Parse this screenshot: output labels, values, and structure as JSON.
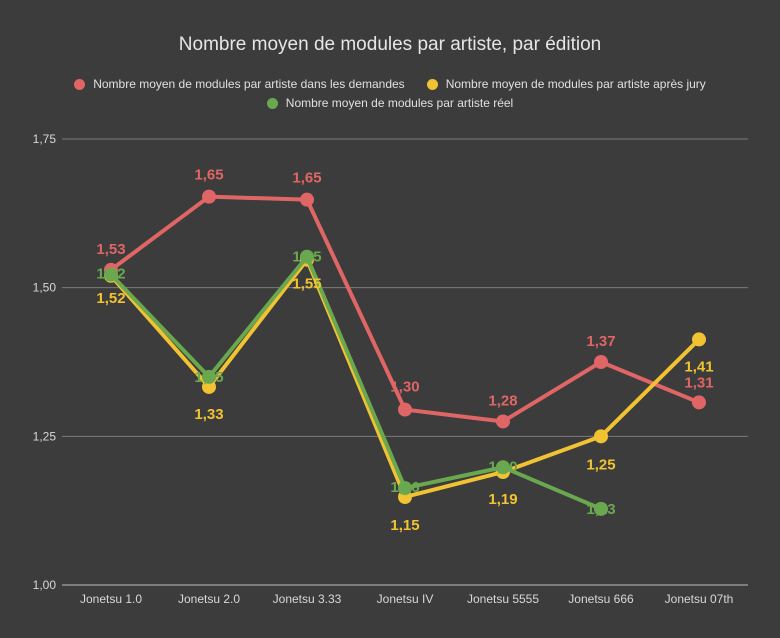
{
  "chart_data": {
    "type": "line",
    "title": "Nombre moyen de modules par artiste, par édition",
    "categories": [
      "Jonetsu 1.0",
      "Jonetsu 2.0",
      "Jonetsu 3.33",
      "Jonetsu IV",
      "Jonetsu 5555",
      "Jonetsu 666",
      "Jonetsu 07th"
    ],
    "yticks": [
      "1,00",
      "1,25",
      "1,50",
      "1,75"
    ],
    "ylim": [
      1.0,
      1.75
    ],
    "grid": true,
    "legend_position": "top",
    "series": [
      {
        "name": "Nombre moyen de modules par artiste dans les demandes",
        "color": "#e06666",
        "values": [
          1.53,
          1.653,
          1.648,
          1.295,
          1.275,
          1.375,
          1.307
        ],
        "labels": [
          "1,53",
          "1,65",
          "1,65",
          "1,30",
          "1,28",
          "1,37",
          "1,31"
        ]
      },
      {
        "name": "Nombre moyen de modules par artiste après jury",
        "color": "#f1c232",
        "values": [
          1.52,
          1.333,
          1.547,
          1.148,
          1.19,
          1.25,
          1.413
        ],
        "labels": [
          "1,52",
          "1,33",
          "1,55",
          "1,15",
          "1,19",
          "1,25",
          "1,41"
        ]
      },
      {
        "name": "Nombre moyen de modules par artiste réel",
        "color": "#6aa84f",
        "values": [
          1.522,
          1.35,
          1.552,
          1.163,
          1.198,
          1.128,
          null
        ],
        "labels": [
          "1,52",
          "1,35",
          "1,55",
          "1,16",
          "1,20",
          "1,13",
          null
        ]
      }
    ]
  }
}
